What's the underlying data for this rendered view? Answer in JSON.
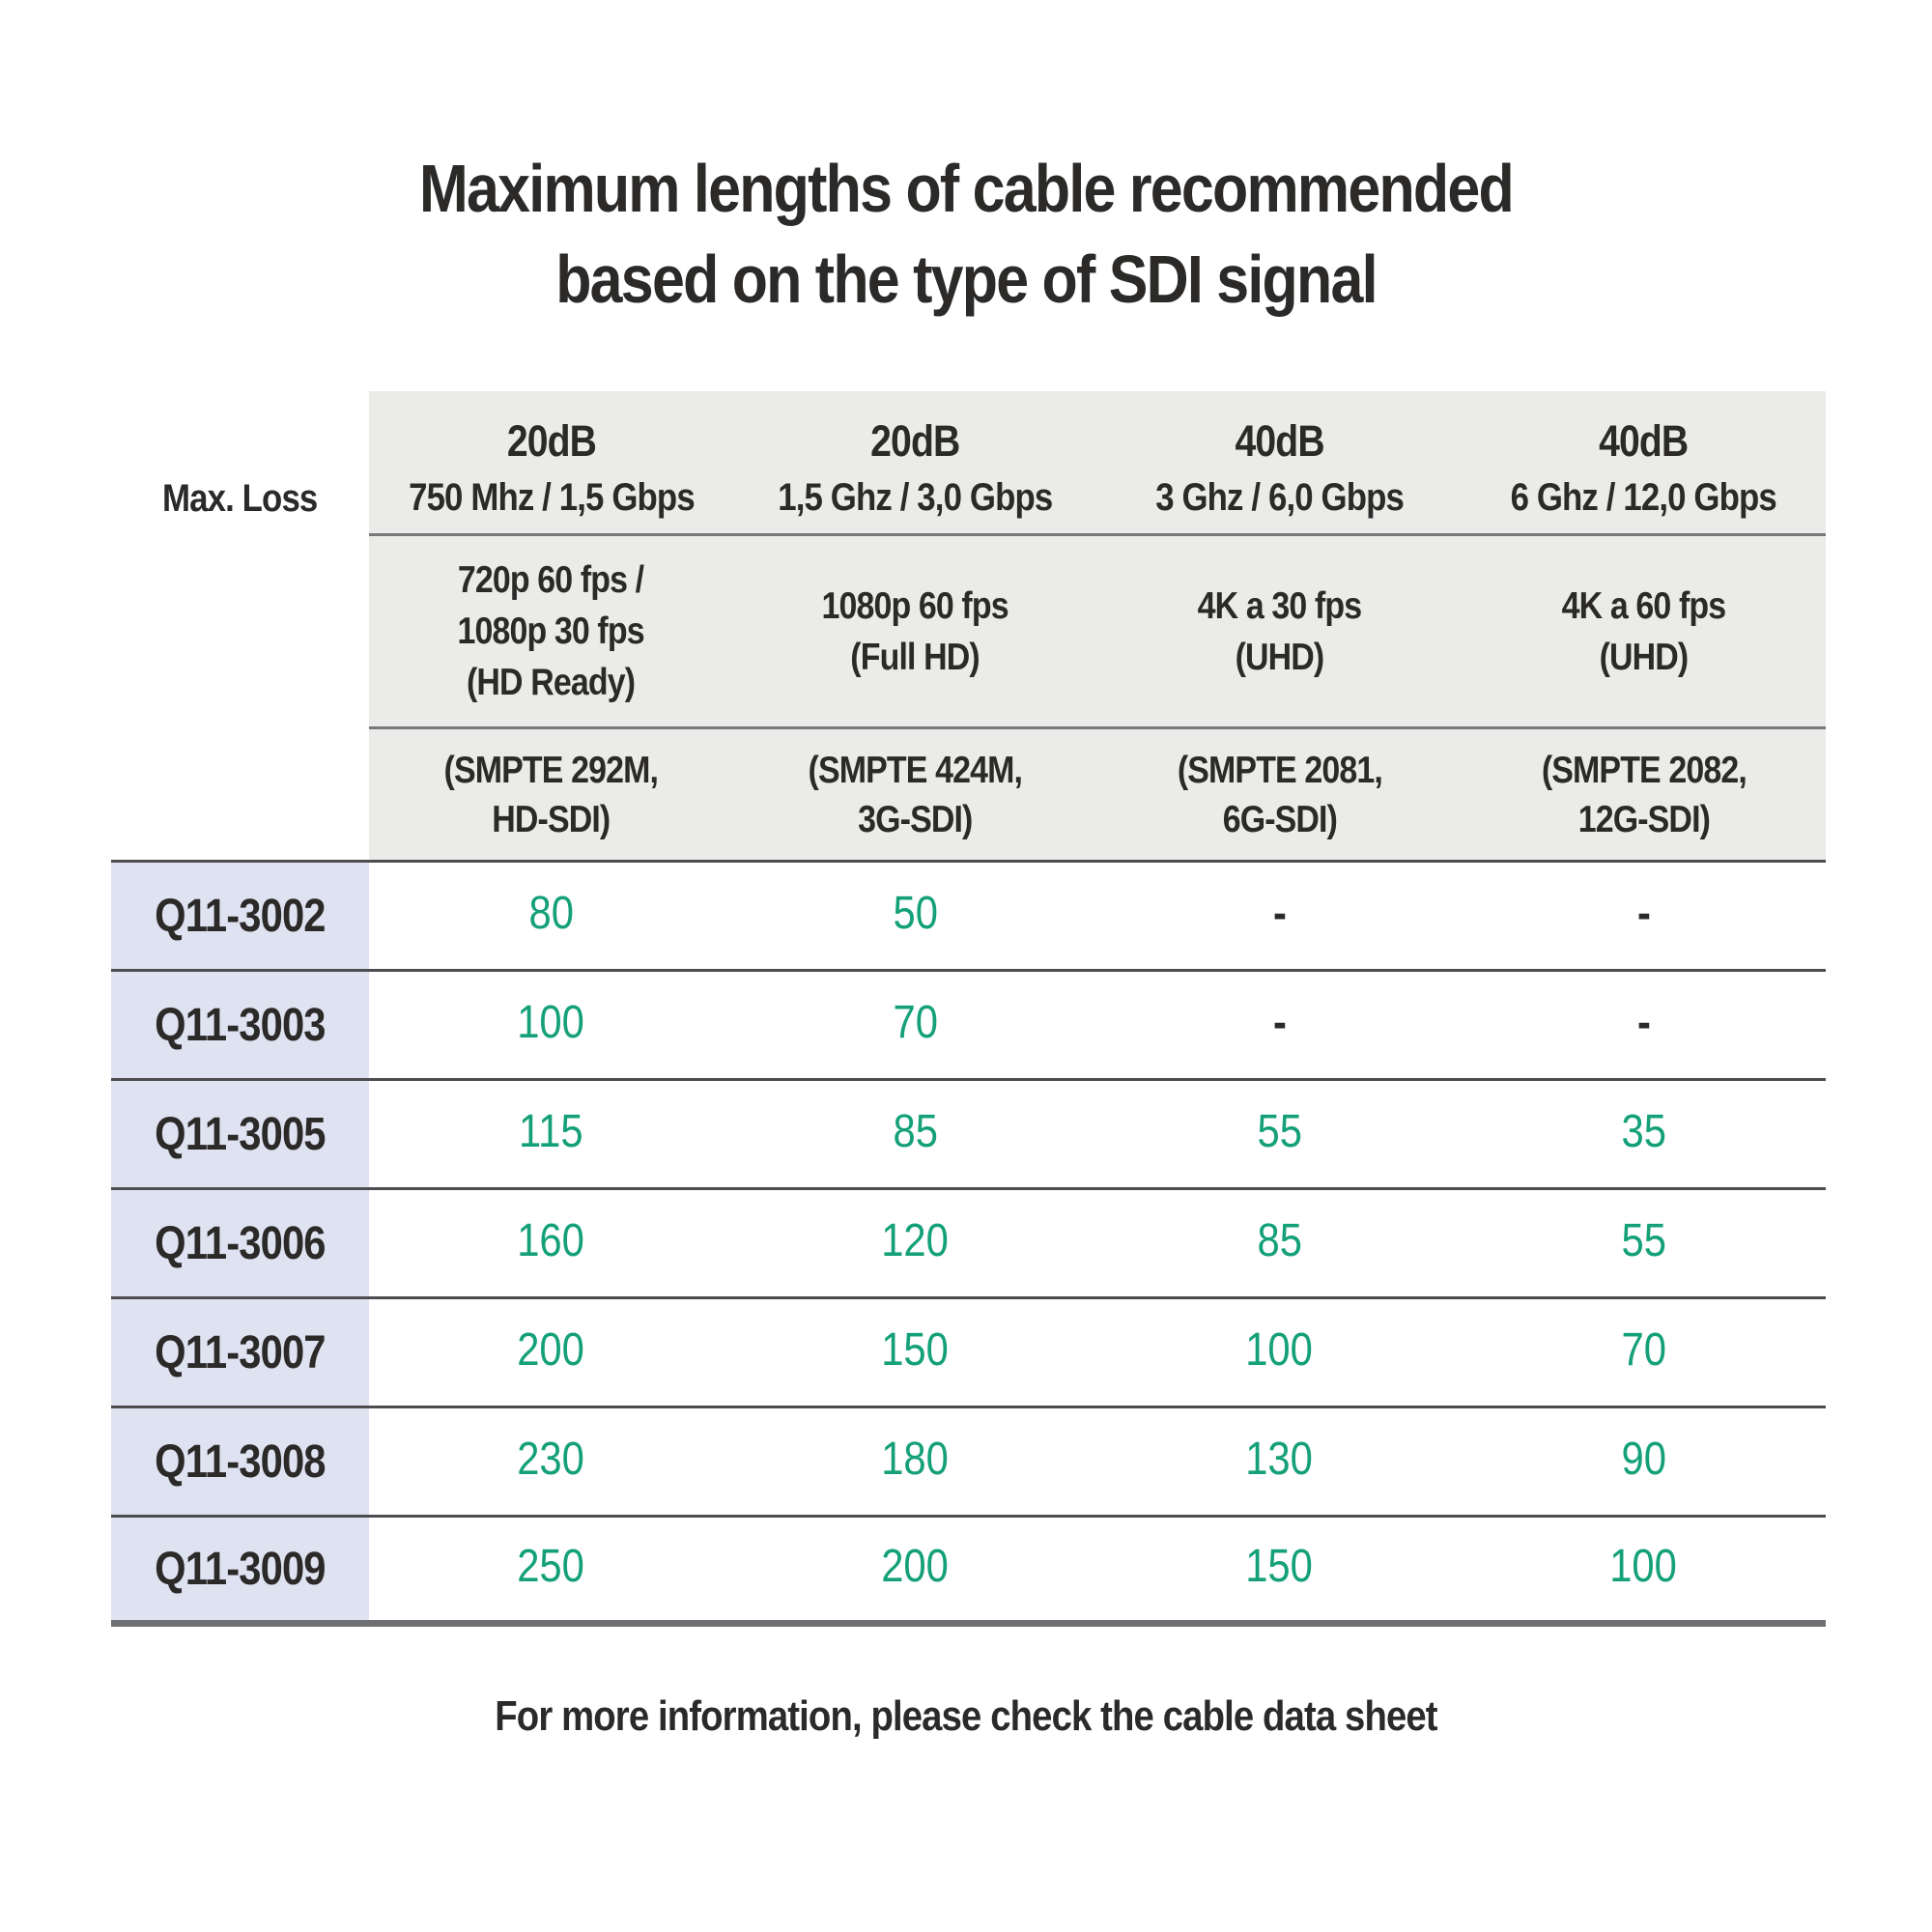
{
  "title": {
    "line1": "Maximum lengths of cable recommended",
    "line2": "based on the type of SDI signal"
  },
  "table": {
    "corner_label": "Max. Loss",
    "columns": [
      {
        "attenuation": "20dB",
        "bandwidth": "750 Mhz / 1,5 Gbps",
        "format_line1": "720p 60 fps /",
        "format_line2": "1080p 30 fps",
        "format_line3": "(HD Ready)",
        "standard_line1": "(SMPTE 292M,",
        "standard_line2": "HD-SDI)"
      },
      {
        "attenuation": "20dB",
        "bandwidth": "1,5 Ghz / 3,0 Gbps",
        "format_line1": "1080p 60 fps",
        "format_line2": "(Full HD)",
        "format_line3": "",
        "standard_line1": "(SMPTE 424M,",
        "standard_line2": "3G-SDI)"
      },
      {
        "attenuation": "40dB",
        "bandwidth": "3 Ghz / 6,0 Gbps",
        "format_line1": "4K a 30 fps",
        "format_line2": "(UHD)",
        "format_line3": "",
        "standard_line1": "(SMPTE 2081,",
        "standard_line2": "6G-SDI)"
      },
      {
        "attenuation": "40dB",
        "bandwidth": "6 Ghz / 12,0 Gbps",
        "format_line1": "4K a 60 fps",
        "format_line2": "(UHD)",
        "format_line3": "",
        "standard_line1": "(SMPTE 2082,",
        "standard_line2": "12G-SDI)"
      }
    ],
    "rows": [
      {
        "model": "Q11-3002",
        "values": [
          "80",
          "50",
          "-",
          "-"
        ]
      },
      {
        "model": "Q11-3003",
        "values": [
          "100",
          "70",
          "-",
          "-"
        ]
      },
      {
        "model": "Q11-3005",
        "values": [
          "115",
          "85",
          "55",
          "35"
        ]
      },
      {
        "model": "Q11-3006",
        "values": [
          "160",
          "120",
          "85",
          "55"
        ]
      },
      {
        "model": "Q11-3007",
        "values": [
          "200",
          "150",
          "100",
          "70"
        ]
      },
      {
        "model": "Q11-3008",
        "values": [
          "230",
          "180",
          "130",
          "90"
        ]
      },
      {
        "model": "Q11-3009",
        "values": [
          "250",
          "200",
          "150",
          "100"
        ]
      }
    ]
  },
  "footer": {
    "note": "For more information, please check the cable data sheet"
  },
  "colors": {
    "accent_green": "#14a078",
    "text_dark": "#2b2a29",
    "header_bg": "#ebebe9",
    "row_label_bg": "#dfe2f0",
    "separator_line": "#4d4d4f"
  },
  "chart_data": {
    "type": "table",
    "title": "Maximum lengths of cable recommended based on the type of SDI signal",
    "corner_label": "Max. Loss",
    "column_headers": [
      {
        "max_loss": "20dB",
        "signal": "750 Mhz / 1,5 Gbps",
        "format": "720p 60 fps / 1080p 30 fps (HD Ready)",
        "standard": "SMPTE 292M, HD-SDI"
      },
      {
        "max_loss": "20dB",
        "signal": "1,5 Ghz / 3,0 Gbps",
        "format": "1080p 60 fps (Full HD)",
        "standard": "SMPTE 424M, 3G-SDI"
      },
      {
        "max_loss": "40dB",
        "signal": "3 Ghz / 6,0 Gbps",
        "format": "4K a 30 fps (UHD)",
        "standard": "SMPTE 2081, 6G-SDI"
      },
      {
        "max_loss": "40dB",
        "signal": "6 Ghz / 12,0 Gbps",
        "format": "4K a 60 fps (UHD)",
        "standard": "SMPTE 2082, 12G-SDI"
      }
    ],
    "rows": [
      {
        "cable": "Q11-3002",
        "max_length_m": [
          80,
          50,
          null,
          null
        ]
      },
      {
        "cable": "Q11-3003",
        "max_length_m": [
          100,
          70,
          null,
          null
        ]
      },
      {
        "cable": "Q11-3005",
        "max_length_m": [
          115,
          85,
          55,
          35
        ]
      },
      {
        "cable": "Q11-3006",
        "max_length_m": [
          160,
          120,
          85,
          55
        ]
      },
      {
        "cable": "Q11-3007",
        "max_length_m": [
          200,
          150,
          100,
          70
        ]
      },
      {
        "cable": "Q11-3008",
        "max_length_m": [
          230,
          180,
          130,
          90
        ]
      },
      {
        "cable": "Q11-3009",
        "max_length_m": [
          250,
          200,
          150,
          100
        ]
      }
    ],
    "footnote": "For more information, please check the cable data sheet"
  }
}
